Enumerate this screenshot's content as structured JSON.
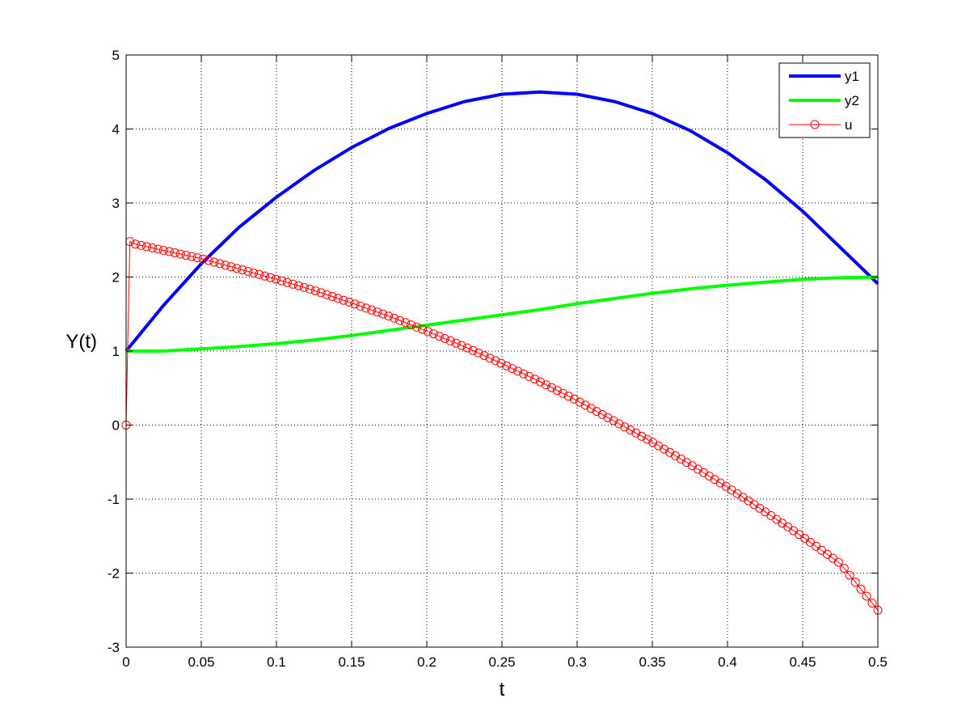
{
  "chart_data": {
    "type": "line",
    "title": "",
    "xlabel": "t",
    "ylabel": "Y(t)",
    "xlim": [
      0,
      0.5
    ],
    "ylim": [
      -3,
      5
    ],
    "xticks": [
      0,
      0.05,
      0.1,
      0.15,
      0.2,
      0.25,
      0.3,
      0.35,
      0.4,
      0.45,
      0.5
    ],
    "xtick_labels": [
      "0",
      "0.05",
      "0.1",
      "0.15",
      "0.2",
      "0.25",
      "0.3",
      "0.35",
      "0.4",
      "0.45",
      "0.5"
    ],
    "yticks": [
      -3,
      -2,
      -1,
      0,
      1,
      2,
      3,
      4,
      5
    ],
    "ytick_labels": [
      "-3",
      "-2",
      "-1",
      "0",
      "1",
      "2",
      "3",
      "4",
      "5"
    ],
    "grid": true,
    "grid_style": "dotted",
    "legend_position": "top-right",
    "series": [
      {
        "name": "y1",
        "color": "#0000ff",
        "line_style": "solid",
        "marker": "none",
        "x": [
          0,
          0.025,
          0.05,
          0.075,
          0.1,
          0.125,
          0.15,
          0.175,
          0.2,
          0.225,
          0.25,
          0.275,
          0.3,
          0.325,
          0.35,
          0.375,
          0.4,
          0.425,
          0.45,
          0.475,
          0.5
        ],
        "y": [
          1.0,
          1.62,
          2.18,
          2.67,
          3.08,
          3.44,
          3.75,
          4.01,
          4.21,
          4.37,
          4.47,
          4.5,
          4.47,
          4.37,
          4.21,
          3.98,
          3.68,
          3.32,
          2.89,
          2.4,
          1.91
        ]
      },
      {
        "name": "y2",
        "color": "#00ff00",
        "line_style": "solid",
        "marker": "none",
        "x": [
          0,
          0.025,
          0.05,
          0.075,
          0.1,
          0.125,
          0.15,
          0.175,
          0.2,
          0.225,
          0.25,
          0.275,
          0.3,
          0.325,
          0.35,
          0.375,
          0.4,
          0.425,
          0.45,
          0.475,
          0.5
        ],
        "y": [
          1.0,
          1.0,
          1.03,
          1.06,
          1.1,
          1.15,
          1.21,
          1.28,
          1.35,
          1.42,
          1.49,
          1.56,
          1.64,
          1.71,
          1.78,
          1.84,
          1.89,
          1.93,
          1.97,
          1.99,
          2.0
        ]
      },
      {
        "name": "u",
        "color": "#ff0000",
        "line_style": "solid",
        "marker": "circle",
        "x": [
          0,
          0.0025,
          0.005,
          0.025,
          0.05,
          0.075,
          0.1,
          0.125,
          0.15,
          0.175,
          0.2,
          0.225,
          0.25,
          0.275,
          0.3,
          0.325,
          0.35,
          0.375,
          0.4,
          0.425,
          0.45,
          0.475,
          0.5
        ],
        "y": [
          0,
          2.48,
          2.45,
          2.36,
          2.25,
          2.11,
          1.97,
          1.82,
          1.65,
          1.47,
          1.27,
          1.06,
          0.83,
          0.59,
          0.33,
          0.05,
          -0.23,
          -0.53,
          -0.84,
          -1.17,
          -1.51,
          -1.87,
          -2.5
        ]
      }
    ]
  }
}
